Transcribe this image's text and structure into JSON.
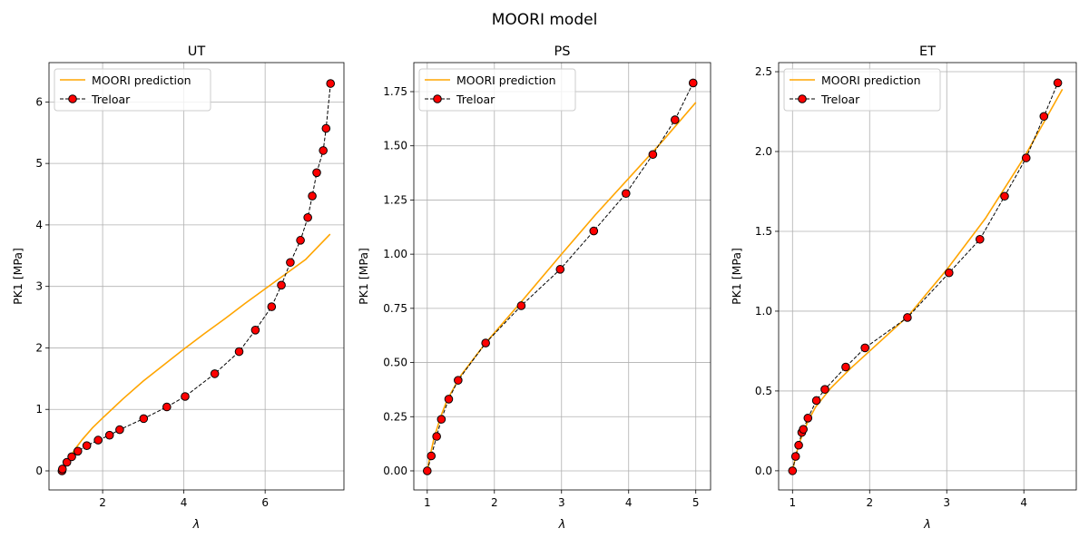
{
  "figure": {
    "title": "MOORI model"
  },
  "colors": {
    "model": "#ffa500",
    "data_line": "#000000",
    "data_marker": "#ff0000",
    "grid": "#b0b0b0"
  },
  "chart_data": [
    {
      "type": "line",
      "title": "UT",
      "xlabel": "λ",
      "ylabel": "PK1 [MPa]",
      "xlim": [
        0.68,
        7.94
      ],
      "ylim": [
        -0.31,
        6.64
      ],
      "xticks": [
        2,
        4,
        6
      ],
      "yticks": [
        0,
        1,
        2,
        3,
        4,
        5,
        6
      ],
      "grid": true,
      "legend": "top-left",
      "series": [
        {
          "name": "MOORI prediction",
          "style": "solid-line",
          "x": [
            1.0,
            1.1,
            1.2,
            1.35,
            1.5,
            1.75,
            2.0,
            2.5,
            3.0,
            3.5,
            4.0,
            4.5,
            5.0,
            5.5,
            6.0,
            6.5,
            7.0,
            7.6
          ],
          "y": [
            0.0,
            0.12,
            0.23,
            0.38,
            0.51,
            0.7,
            0.86,
            1.17,
            1.46,
            1.72,
            1.98,
            2.23,
            2.47,
            2.72,
            2.96,
            3.2,
            3.44,
            3.85
          ]
        },
        {
          "name": "Treloar",
          "style": "dashed-line-with-markers",
          "x": [
            1.0,
            1.01,
            1.12,
            1.24,
            1.39,
            1.61,
            1.89,
            2.17,
            2.42,
            3.01,
            3.58,
            4.03,
            4.76,
            5.36,
            5.76,
            6.16,
            6.4,
            6.62,
            6.87,
            7.05,
            7.16,
            7.27,
            7.43,
            7.5,
            7.61
          ],
          "y": [
            0.0,
            0.03,
            0.14,
            0.23,
            0.32,
            0.41,
            0.5,
            0.58,
            0.67,
            0.85,
            1.04,
            1.21,
            1.58,
            1.94,
            2.29,
            2.67,
            3.02,
            3.39,
            3.75,
            4.12,
            4.47,
            4.85,
            5.21,
            5.57,
            6.3
          ]
        }
      ]
    },
    {
      "type": "line",
      "title": "PS",
      "xlabel": "λ",
      "ylabel": "PK1 [MPa]",
      "xlim": [
        0.8,
        5.22
      ],
      "ylim": [
        -0.088,
        1.884
      ],
      "xticks": [
        1,
        2,
        3,
        4,
        5
      ],
      "yticks": [
        0.0,
        0.25,
        0.5,
        0.75,
        1.0,
        1.25,
        1.5,
        1.75
      ],
      "ytick_labels": [
        "0.00",
        "0.25",
        "0.50",
        "0.75",
        "1.00",
        "1.25",
        "1.50",
        "1.75"
      ],
      "grid": true,
      "legend": "top-left",
      "series": [
        {
          "name": "MOORI prediction",
          "style": "solid-line",
          "x": [
            1.0,
            1.05,
            1.1,
            1.2,
            1.3,
            1.5,
            1.87,
            2.4,
            3.0,
            3.5,
            4.0,
            4.5,
            5.0
          ],
          "y": [
            0.0,
            0.08,
            0.15,
            0.25,
            0.33,
            0.44,
            0.59,
            0.78,
            1.0,
            1.18,
            1.35,
            1.52,
            1.7
          ]
        },
        {
          "name": "Treloar",
          "style": "dashed-line-with-markers",
          "x": [
            1.0,
            1.06,
            1.14,
            1.21,
            1.32,
            1.46,
            1.87,
            2.4,
            2.98,
            3.48,
            3.96,
            4.36,
            4.69,
            4.96
          ],
          "y": [
            0.0,
            0.069,
            0.159,
            0.238,
            0.331,
            0.418,
            0.59,
            0.762,
            0.93,
            1.107,
            1.28,
            1.46,
            1.62,
            1.79
          ]
        }
      ]
    },
    {
      "type": "line",
      "title": "ET",
      "xlabel": "λ",
      "ylabel": "PK1 [MPa]",
      "xlim": [
        0.82,
        4.68
      ],
      "ylim": [
        -0.12,
        2.557
      ],
      "xticks": [
        1,
        2,
        3,
        4
      ],
      "yticks": [
        0.0,
        0.5,
        1.0,
        1.5,
        2.0,
        2.5
      ],
      "ytick_labels": [
        "0.0",
        "0.5",
        "1.0",
        "1.5",
        "2.0",
        "2.5"
      ],
      "grid": true,
      "legend": "top-left",
      "series": [
        {
          "name": "MOORI prediction",
          "style": "solid-line",
          "x": [
            1.0,
            1.05,
            1.1,
            1.2,
            1.3,
            1.5,
            1.75,
            2.0,
            2.5,
            3.0,
            3.5,
            4.0,
            4.5
          ],
          "y": [
            0.0,
            0.11,
            0.19,
            0.31,
            0.4,
            0.52,
            0.64,
            0.75,
            0.97,
            1.26,
            1.58,
            1.96,
            2.39
          ]
        },
        {
          "name": "Treloar",
          "style": "dashed-line-with-markers",
          "x": [
            1.0,
            1.04,
            1.08,
            1.12,
            1.14,
            1.2,
            1.31,
            1.42,
            1.69,
            1.94,
            2.49,
            3.03,
            3.43,
            3.75,
            4.03,
            4.26,
            4.44
          ],
          "y": [
            0.0,
            0.09,
            0.16,
            0.24,
            0.26,
            0.33,
            0.44,
            0.51,
            0.65,
            0.77,
            0.96,
            1.24,
            1.45,
            1.72,
            1.96,
            2.22,
            2.43
          ]
        }
      ]
    }
  ]
}
